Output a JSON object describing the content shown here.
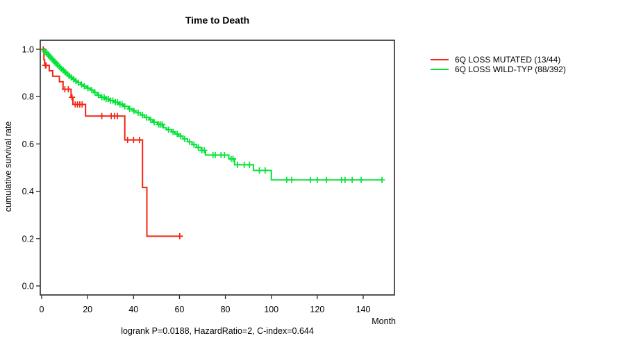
{
  "title": "Time to Death",
  "caption": "logrank P=0.0188, HazardRatio=2, C-index=0.644",
  "y_axis": {
    "label": "cumulative survival rate",
    "ticks": [
      "0.0",
      "0.2",
      "0.4",
      "0.6",
      "0.8",
      "1.0"
    ],
    "tick_values": [
      0,
      0.2,
      0.4,
      0.6,
      0.8,
      1.0
    ]
  },
  "x_axis": {
    "label": "Month",
    "ticks": [
      "0",
      "20",
      "40",
      "60",
      "80",
      "100",
      "120",
      "140"
    ],
    "tick_values": [
      0,
      20,
      40,
      60,
      80,
      100,
      120,
      140
    ]
  },
  "legend": {
    "items": [
      {
        "label": "6Q LOSS MUTATED (13/44)",
        "color": "#f32413"
      },
      {
        "label": "6Q LOSS WILD-TYP (88/392)",
        "color": "#00e235"
      }
    ]
  },
  "colors": {
    "axis": "#2a2a2a",
    "text": "#000000",
    "background": "#ffffff"
  },
  "chart_data": {
    "type": "line",
    "subtype": "kaplan-meier-step",
    "title": "Time to Death",
    "xlabel": "Month",
    "ylabel": "cumulative survival rate",
    "xlim": [
      0,
      153.5
    ],
    "ylim": [
      0,
      1.0
    ],
    "grid": false,
    "legend_position": "right-outside",
    "series": [
      {
        "name": "6Q LOSS MUTATED (13/44)",
        "color": "#f32413",
        "steps": [
          [
            0,
            1.0
          ],
          [
            1.0,
            0.955
          ],
          [
            1.3,
            0.932
          ],
          [
            3.3,
            0.909
          ],
          [
            4.8,
            0.886
          ],
          [
            7.7,
            0.863
          ],
          [
            9.3,
            0.831
          ],
          [
            12.8,
            0.797
          ],
          [
            13.6,
            0.767
          ],
          [
            19.1,
            0.718
          ],
          [
            36.2,
            0.617
          ],
          [
            43.9,
            0.416
          ],
          [
            45.8,
            0.21
          ]
        ],
        "end": 61.5,
        "censors": [
          0.7,
          1.6,
          1.9,
          10.1,
          11.6,
          13.2,
          14.6,
          15.6,
          16.6,
          17.6,
          26.2,
          30.3,
          31.7,
          33.0,
          37.4,
          40.0,
          42.6,
          60.1
        ]
      },
      {
        "name": "6Q LOSS WILD-TYP (88/392)",
        "color": "#00e235",
        "steps": [
          [
            0,
            1.0
          ],
          [
            0.8,
            0.993
          ],
          [
            1.5,
            0.986
          ],
          [
            2.2,
            0.978
          ],
          [
            3.0,
            0.971
          ],
          [
            3.8,
            0.963
          ],
          [
            4.5,
            0.956
          ],
          [
            5.3,
            0.948
          ],
          [
            6.0,
            0.941
          ],
          [
            6.8,
            0.933
          ],
          [
            7.6,
            0.926
          ],
          [
            8.4,
            0.918
          ],
          [
            9.1,
            0.911
          ],
          [
            10.0,
            0.903
          ],
          [
            10.8,
            0.896
          ],
          [
            11.6,
            0.888
          ],
          [
            12.5,
            0.881
          ],
          [
            13.6,
            0.874
          ],
          [
            14.5,
            0.866
          ],
          [
            15.5,
            0.859
          ],
          [
            16.9,
            0.851
          ],
          [
            18.1,
            0.844
          ],
          [
            19.7,
            0.836
          ],
          [
            21.2,
            0.828
          ],
          [
            22.7,
            0.817
          ],
          [
            24.2,
            0.806
          ],
          [
            25.7,
            0.797
          ],
          [
            27.5,
            0.79
          ],
          [
            29.5,
            0.783
          ],
          [
            31.5,
            0.776
          ],
          [
            33.5,
            0.768
          ],
          [
            35.5,
            0.759
          ],
          [
            37.8,
            0.748
          ],
          [
            39.5,
            0.74
          ],
          [
            41.0,
            0.732
          ],
          [
            43.0,
            0.722
          ],
          [
            44.8,
            0.712
          ],
          [
            46.9,
            0.702
          ],
          [
            48.4,
            0.692
          ],
          [
            50.5,
            0.682
          ],
          [
            53.0,
            0.668
          ],
          [
            54.4,
            0.66
          ],
          [
            56.5,
            0.651
          ],
          [
            58.0,
            0.642
          ],
          [
            59.5,
            0.633
          ],
          [
            61.5,
            0.621
          ],
          [
            63.5,
            0.609
          ],
          [
            65.5,
            0.597
          ],
          [
            67.4,
            0.585
          ],
          [
            69.5,
            0.573
          ],
          [
            71.3,
            0.553
          ],
          [
            81.5,
            0.537
          ],
          [
            84.0,
            0.512
          ],
          [
            92.2,
            0.488
          ],
          [
            100.0,
            0.448
          ]
        ],
        "end": 148.5,
        "censors": [
          1.2,
          2.0,
          2.8,
          3.4,
          4.1,
          4.8,
          5.6,
          6.3,
          7.0,
          7.8,
          8.6,
          9.4,
          10.3,
          11.1,
          12.0,
          12.9,
          13.9,
          14.9,
          16.0,
          17.3,
          18.6,
          20.1,
          21.8,
          23.2,
          24.7,
          26.2,
          27.2,
          28.1,
          29.0,
          30.0,
          31.0,
          32.1,
          33.0,
          34.1,
          35.0,
          36.2,
          38.3,
          40.2,
          42.0,
          43.9,
          45.6,
          47.5,
          49.0,
          51.0,
          51.8,
          52.5,
          55.2,
          57.2,
          59.0,
          60.5,
          62.3,
          64.4,
          66.3,
          68.2,
          69.8,
          70.8,
          74.6,
          75.6,
          78.1,
          79.6,
          82.5,
          83.3,
          85.2,
          88.2,
          90.5,
          94.8,
          97.3,
          106.7,
          108.9,
          117.0,
          120.0,
          124.0,
          130.6,
          132.1,
          135.2,
          139.1,
          148.2
        ]
      }
    ]
  }
}
